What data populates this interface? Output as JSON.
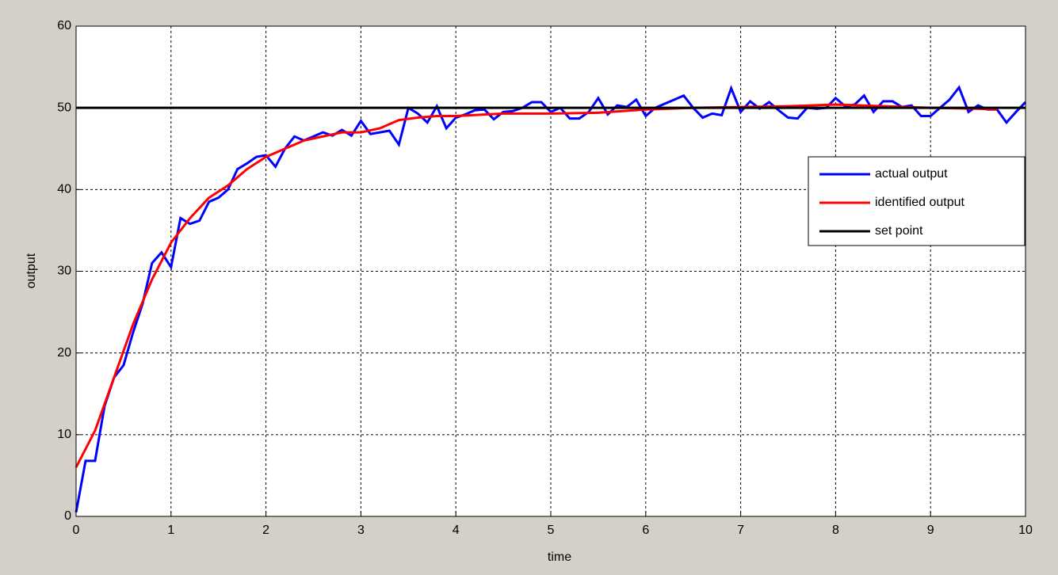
{
  "chart_data": {
    "type": "line",
    "xlabel": "time",
    "ylabel": "output",
    "xlim": [
      0,
      10
    ],
    "ylim": [
      0,
      60
    ],
    "xticks": [
      0,
      1,
      2,
      3,
      4,
      5,
      6,
      7,
      8,
      9,
      10
    ],
    "yticks": [
      0,
      10,
      20,
      30,
      40,
      50,
      60
    ],
    "grid": true,
    "legend_position": "east",
    "series": [
      {
        "name": "actual output",
        "color": "#0000ff",
        "x": [
          0,
          0.1,
          0.2,
          0.3,
          0.4,
          0.5,
          0.6,
          0.7,
          0.8,
          0.9,
          1,
          1.1,
          1.2,
          1.3,
          1.4,
          1.5,
          1.6,
          1.7,
          1.8,
          1.9,
          2,
          2.1,
          2.2,
          2.3,
          2.4,
          2.5,
          2.6,
          2.7,
          2.8,
          2.9,
          3,
          3.1,
          3.2,
          3.3,
          3.4,
          3.5,
          3.6,
          3.7,
          3.8,
          3.9,
          4,
          4.1,
          4.2,
          4.3,
          4.4,
          4.5,
          4.6,
          4.7,
          4.8,
          4.9,
          5,
          5.1,
          5.2,
          5.3,
          5.4,
          5.5,
          5.6,
          5.7,
          5.8,
          5.9,
          6,
          6.1,
          6.2,
          6.3,
          6.4,
          6.5,
          6.6,
          6.7,
          6.8,
          6.9,
          7,
          7.1,
          7.2,
          7.3,
          7.4,
          7.5,
          7.6,
          7.7,
          7.8,
          7.9,
          8,
          8.1,
          8.2,
          8.3,
          8.4,
          8.5,
          8.6,
          8.7,
          8.8,
          8.9,
          9,
          9.1,
          9.2,
          9.3,
          9.4,
          9.5,
          9.6,
          9.7,
          9.8,
          9.9,
          10
        ],
        "values": [
          0.5,
          6.8,
          6.8,
          13.5,
          17,
          18.5,
          22.5,
          26,
          31,
          32.3,
          30.5,
          36.5,
          35.8,
          36.2,
          38.5,
          39,
          40,
          42.5,
          43.2,
          44,
          44.2,
          42.8,
          45,
          46.5,
          46,
          46.5,
          47,
          46.6,
          47.3,
          46.6,
          48.4,
          46.8,
          47,
          47.2,
          45.5,
          50,
          49.3,
          48.2,
          50.2,
          47.5,
          48.8,
          49.2,
          49.7,
          49.8,
          48.6,
          49.5,
          49.6,
          50,
          50.7,
          50.7,
          49.5,
          50,
          48.7,
          48.7,
          49.5,
          51.2,
          49.2,
          50.3,
          50.1,
          51,
          49,
          50,
          50.5,
          51,
          51.5,
          50,
          48.8,
          49.3,
          49.1,
          52.4,
          49.5,
          50.8,
          49.9,
          50.7,
          49.7,
          48.8,
          48.7,
          50,
          49.9,
          50,
          51.2,
          50.2,
          50.4,
          51.5,
          49.5,
          50.8,
          50.8,
          50.1,
          50.3,
          49,
          49,
          50,
          51,
          52.5,
          49.5,
          50.3,
          49.8,
          49.8,
          48.2,
          49.5,
          50.7
        ]
      },
      {
        "name": "identified output",
        "color": "#ff0000",
        "x": [
          0,
          0.2,
          0.4,
          0.6,
          0.8,
          1,
          1.2,
          1.4,
          1.6,
          1.8,
          2,
          2.2,
          2.4,
          2.6,
          2.8,
          3,
          3.2,
          3.4,
          3.6,
          3.8,
          4,
          4.5,
          5,
          5.5,
          6,
          6.5,
          7,
          7.5,
          8,
          8.5,
          9,
          9.5,
          9.7
        ],
        "values": [
          6,
          10.5,
          17,
          23.5,
          29,
          33.5,
          36.5,
          39,
          40.5,
          42.5,
          44,
          45,
          46,
          46.5,
          47,
          47,
          47.5,
          48.5,
          48.8,
          49,
          49,
          49.3,
          49.3,
          49.4,
          49.8,
          50,
          50.1,
          50.2,
          50.4,
          50.2,
          50,
          49.9,
          49.8
        ]
      },
      {
        "name": "set point",
        "color": "#000000",
        "x": [
          0,
          10
        ],
        "values": [
          50,
          50
        ]
      }
    ]
  }
}
